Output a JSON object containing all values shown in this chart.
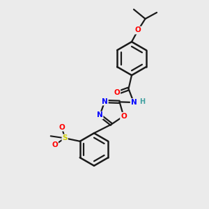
{
  "bg_color": "#ebebeb",
  "bond_color": "#1a1a1a",
  "atom_colors": {
    "O": "#ff0000",
    "N": "#0000ff",
    "S": "#cccc00",
    "H": "#40a0a0",
    "C": "#1a1a1a"
  }
}
